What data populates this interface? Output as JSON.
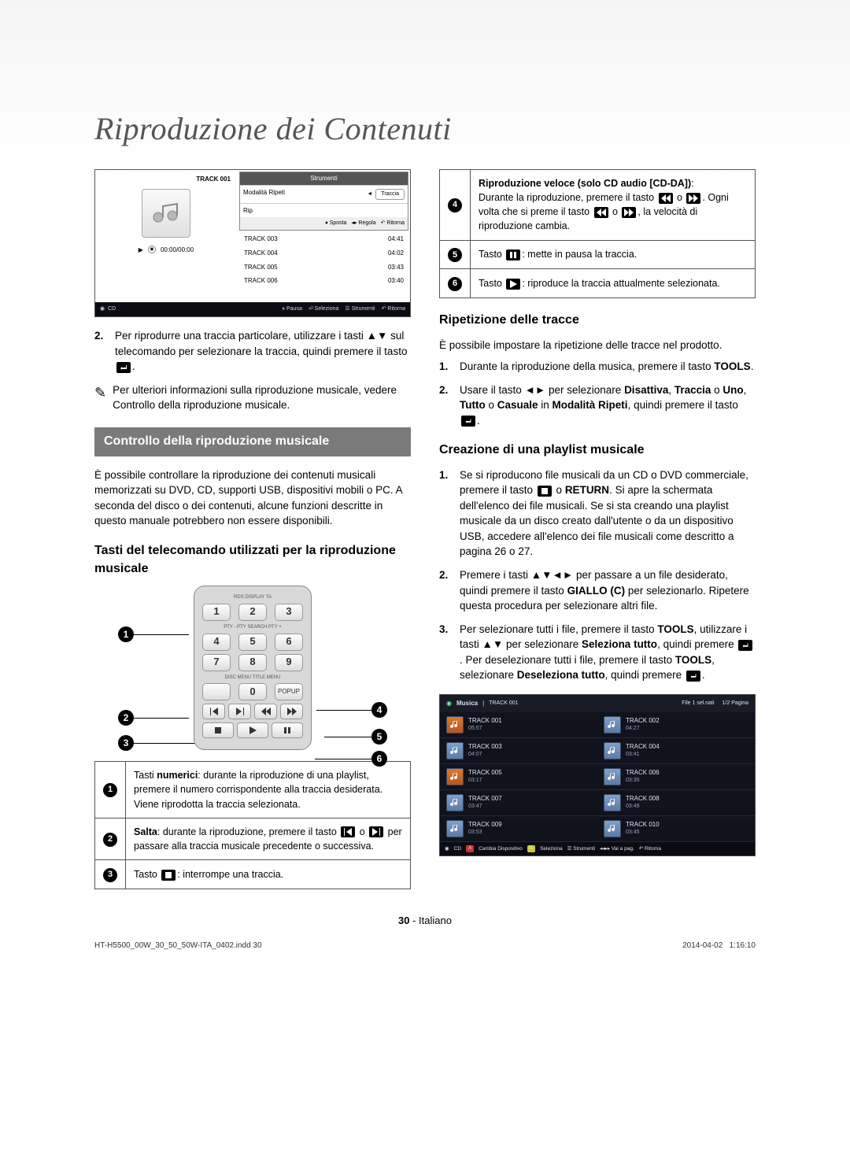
{
  "page": {
    "title": "Riproduzione dei Contenuti",
    "number": "30",
    "lang": "Italiano",
    "imprint_file": "HT-H5500_00W_30_50_50W-ITA_0402.indd   30",
    "imprint_date": "2014-04-02",
    "imprint_time": "1:16:10"
  },
  "screenshot1": {
    "now_playing": "TRACK 001",
    "elapsed": "00:00/00:00",
    "tools_title": "Strumenti",
    "mode_label": "Modalità Ripeti",
    "mode_value": "Traccia",
    "rip_label": "Rip",
    "legend_move": "Sposta",
    "legend_adjust": "Regola",
    "legend_return": "Ritorna",
    "tracks": [
      {
        "name": "TRACK 003",
        "dur": "04:41"
      },
      {
        "name": "TRACK 004",
        "dur": "04:02"
      },
      {
        "name": "TRACK 005",
        "dur": "03:43"
      },
      {
        "name": "TRACK 006",
        "dur": "03:40"
      }
    ],
    "footer_src": "CD",
    "footer_pause": "Pausa",
    "footer_items": [
      "Seleziona",
      "Strumenti",
      "Ritorna"
    ]
  },
  "left": {
    "step2_num": "2.",
    "step2": "Per riprodurre una traccia particolare, utilizzare i tasti ▲▼ sul telecomando per selezionare la traccia, quindi premere il tasto ",
    "note_mark": "✎",
    "note": "Per ulteriori informazioni sulla riproduzione musicale, vedere Controllo della riproduzione musicale.",
    "section_title": "Controllo della riproduzione musicale",
    "section_body": "È possibile controllare la riproduzione dei contenuti musicali memorizzati su DVD, CD, supporti USB, dispositivi mobili o PC. A seconda del disco o dei contenuti, alcune funzioni descritte in questo manuale potrebbero non essere disponibili.",
    "sub_title": "Tasti del telecomando utilizzati per la riproduzione musicale"
  },
  "remote": {
    "row_labels_top": "RDS DISPLAY            TA",
    "row_labels_mid": "PTY -   PTY SEARCH   PTY +",
    "row_labels_bot": "DISC MENU   TITLE MENU",
    "popup": "POPUP"
  },
  "ref_left": [
    {
      "n": "1",
      "html": "Tasti <b>numerici</b>: durante la riproduzione di una playlist, premere il numero corrispondente alla traccia desiderata. Viene riprodotta la traccia selezionata."
    },
    {
      "n": "2",
      "html": "<b>Salta</b>: durante la riproduzione, premere il tasto |SKIPBACK| o |SKIPFWD| per passare alla traccia musicale precedente o successiva."
    },
    {
      "n": "3",
      "html": "Tasto |STOP|: interrompe una traccia."
    }
  ],
  "ref_right": [
    {
      "n": "4",
      "html": "<b>Riproduzione veloce (solo CD audio [CD-DA])</b>:<br>Durante la riproduzione, premere il tasto |REW| o |FFW|. Ogni volta che si preme il tasto |REW| o |FFW|, la velocità di riproduzione cambia."
    },
    {
      "n": "5",
      "html": "Tasto |PAUSE|: mette in pausa la traccia."
    },
    {
      "n": "6",
      "html": "Tasto |PLAY|: riproduce la traccia attualmente selezionata."
    }
  ],
  "right": {
    "h_repeat": "Ripetizione delle tracce",
    "repeat_intro": "È possibile impostare la ripetizione delle tracce nel prodotto.",
    "repeat1_num": "1.",
    "repeat1": "Durante la riproduzione della musica, premere il tasto <b>TOOLS</b>.",
    "repeat2_num": "2.",
    "repeat2": "Usare il tasto ◄► per selezionare <b>Disattiva</b>, <b>Traccia</b> o <b>Uno</b>, <b>Tutto</b> o <b>Casuale</b> in <b>Modalità Ripeti</b>, quindi premere il tasto |ENTER|.",
    "h_playlist": "Creazione di una playlist musicale",
    "pl1_num": "1.",
    "pl1": "Se si riproducono file musicali da un CD o DVD commerciale, premere il tasto |STOP| o <b>RETURN</b>. Si apre la schermata dell'elenco dei file musicali. Se si sta creando una playlist musicale da un disco creato dall'utente o da un dispositivo USB, accedere all'elenco dei file musicali come descritto a pagina 26 o 27.",
    "pl2_num": "2.",
    "pl2": "Premere i tasti ▲▼◄► per passare a un file desiderato, quindi premere il tasto <b>GIALLO (C)</b> per selezionarlo. Ripetere questa procedura per selezionare altri file.",
    "pl3_num": "3.",
    "pl3": "Per selezionare tutti i file, premere il tasto <b>TOOLS</b>, utilizzare i tasti ▲▼ per selezionare <b>Seleziona tutto</b>, quindi premere |ENTER|. Per deselezionare tutti i file, premere il tasto <b>TOOLS</b>, selezionare <b>Deseleziona tutto</b>, quindi premere |ENTER|."
  },
  "music_shot": {
    "title_cat": "Musica",
    "title_sub": "TRACK 001",
    "status": "File 1 sel.nati",
    "page": "1/2 Pagina",
    "items": [
      {
        "t": "TRACK 001",
        "d": "05:57",
        "sel": true
      },
      {
        "t": "TRACK 002",
        "d": "04:27"
      },
      {
        "t": "TRACK 003",
        "d": "04:07"
      },
      {
        "t": "TRACK 004",
        "d": "03:41"
      },
      {
        "t": "TRACK 005",
        "d": "03:17",
        "sel": true
      },
      {
        "t": "TRACK 006",
        "d": "03:35"
      },
      {
        "t": "TRACK 007",
        "d": "03:47"
      },
      {
        "t": "TRACK 008",
        "d": "03:49"
      },
      {
        "t": "TRACK 009",
        "d": "03:53"
      },
      {
        "t": "TRACK 010",
        "d": "03:45"
      }
    ],
    "footer_src": "CD",
    "footer": [
      "Cambia Dispositivo",
      "Seleziona",
      "Strumenti",
      "Vai a pag.",
      "Ritorna"
    ]
  },
  "icons": {
    "SKIPBACK": "<svg viewBox='0 0 12 10'><path d='M1 0h1v10H1zM11 0L4 5l7 5z'/></svg>",
    "SKIPFWD": "<svg viewBox='0 0 12 10'><path d='M10 0h1v10h-1zM1 0l7 5-7 5z'/></svg>",
    "REW": "<svg viewBox='0 0 12 10'><path d='M6 0L0 5l6 5zM12 0L6 5l6 5z'/></svg>",
    "FFW": "<svg viewBox='0 0 12 10'><path d='M0 0l6 5-6 5zM6 0l6 5-6 5z'/></svg>",
    "STOP": "<svg viewBox='0 0 10 10'><rect x='1' y='1' width='8' height='8'/></svg>",
    "PAUSE": "<svg viewBox='0 0 10 10'><rect x='1' y='1' width='3' height='8'/><rect x='6' y='1' width='3' height='8'/></svg>",
    "PLAY": "<svg viewBox='0 0 10 10'><path d='M1 0l9 5-9 5z'/></svg>",
    "ENTER": "<svg viewBox='0 0 14 10'><rect x='0' y='0' width='14' height='10' rx='2' fill='#000'/><path d='M10 2v3H5v-1l-2 2 2 2v-1h6V2z' fill='#fff'/></svg>"
  }
}
